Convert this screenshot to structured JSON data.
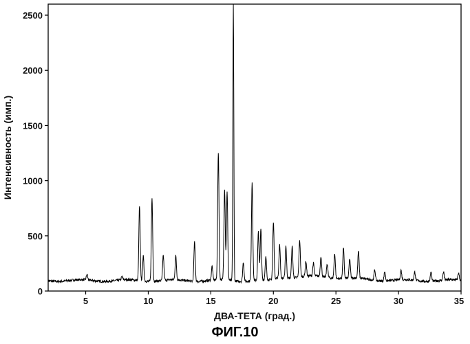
{
  "figure_label": "ФИГ.10",
  "chart_data": {
    "type": "line",
    "title": "",
    "xlabel": "ДВА-ТЕТА (град.)",
    "ylabel": "Интенсивность (имп.)",
    "xlim": [
      2,
      35
    ],
    "ylim": [
      0,
      2600
    ],
    "x_ticks": [
      5,
      10,
      15,
      20,
      25,
      30,
      35
    ],
    "y_ticks": [
      0,
      500,
      1000,
      1500,
      2000,
      2500
    ],
    "grid": false,
    "baseline": 95,
    "series": [
      {
        "color": "#000000",
        "peaks": [
          {
            "x": 5.1,
            "y": 145
          },
          {
            "x": 7.9,
            "y": 125
          },
          {
            "x": 9.3,
            "y": 770
          },
          {
            "x": 9.6,
            "y": 320
          },
          {
            "x": 10.3,
            "y": 850
          },
          {
            "x": 11.2,
            "y": 320
          },
          {
            "x": 12.2,
            "y": 310
          },
          {
            "x": 13.7,
            "y": 450
          },
          {
            "x": 15.1,
            "y": 220
          },
          {
            "x": 15.6,
            "y": 1250
          },
          {
            "x": 16.1,
            "y": 920
          },
          {
            "x": 16.3,
            "y": 890
          },
          {
            "x": 16.8,
            "y": 2600
          },
          {
            "x": 17.6,
            "y": 270
          },
          {
            "x": 18.3,
            "y": 990
          },
          {
            "x": 18.8,
            "y": 530
          },
          {
            "x": 19.0,
            "y": 560
          },
          {
            "x": 19.4,
            "y": 300
          },
          {
            "x": 20.0,
            "y": 610
          },
          {
            "x": 20.5,
            "y": 400
          },
          {
            "x": 21.0,
            "y": 390
          },
          {
            "x": 21.5,
            "y": 380
          },
          {
            "x": 22.1,
            "y": 430
          },
          {
            "x": 22.6,
            "y": 230
          },
          {
            "x": 23.2,
            "y": 210
          },
          {
            "x": 23.8,
            "y": 280
          },
          {
            "x": 24.3,
            "y": 220
          },
          {
            "x": 24.9,
            "y": 320
          },
          {
            "x": 25.6,
            "y": 370
          },
          {
            "x": 26.1,
            "y": 270
          },
          {
            "x": 26.8,
            "y": 340
          },
          {
            "x": 28.1,
            "y": 190
          },
          {
            "x": 28.9,
            "y": 180
          },
          {
            "x": 30.2,
            "y": 180
          },
          {
            "x": 31.3,
            "y": 170
          },
          {
            "x": 32.6,
            "y": 180
          },
          {
            "x": 33.6,
            "y": 170
          },
          {
            "x": 34.8,
            "y": 160
          }
        ]
      }
    ]
  }
}
